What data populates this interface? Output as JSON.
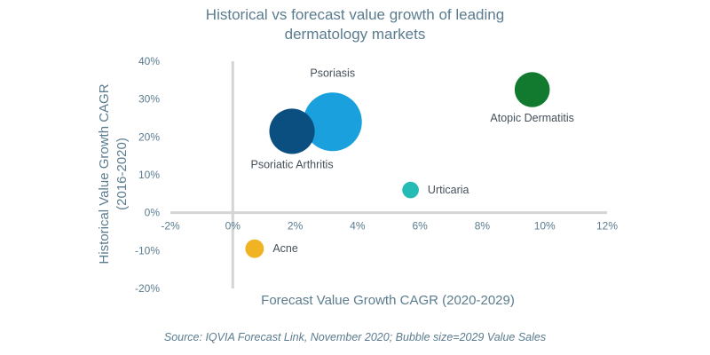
{
  "chart_data": {
    "type": "scatter",
    "title_lines": [
      "Historical vs forecast value growth of leading",
      "dermatology markets"
    ],
    "xlabel": "Forecast Value Growth CAGR (2020-2029)",
    "ylabel_lines": [
      "Historical Value Growth CAGR",
      "(2016-2020)"
    ],
    "xlim": [
      -2,
      12
    ],
    "ylim": [
      -20,
      40
    ],
    "x_ticks": [
      -2,
      0,
      2,
      4,
      6,
      8,
      10,
      12
    ],
    "y_ticks": [
      40,
      30,
      20,
      10,
      0,
      -10,
      -20
    ],
    "x_tick_labels": [
      "-2%",
      "0%",
      "2%",
      "4%",
      "6%",
      "8%",
      "10%",
      "12%"
    ],
    "y_tick_labels": [
      "40%",
      "30%",
      "20%",
      "10%",
      "0%",
      "-10%",
      "-20%"
    ],
    "grid": false,
    "bubbles": [
      {
        "name": "Psoriasis",
        "x": 3.2,
        "y": 24,
        "size": 1.0,
        "color": "#1aa0dc",
        "label_pos": "above"
      },
      {
        "name": "Psoriatic Arthritis",
        "x": 1.9,
        "y": 21.5,
        "size": 0.6,
        "color": "#0b4f80",
        "label_pos": "below"
      },
      {
        "name": "Atopic Dermatitis",
        "x": 9.6,
        "y": 32.5,
        "size": 0.36,
        "color": "#127a2e",
        "label_pos": "below"
      },
      {
        "name": "Urticaria",
        "x": 5.7,
        "y": 6,
        "size": 0.08,
        "color": "#26bcb6",
        "label_pos": "right"
      },
      {
        "name": "Acne",
        "x": 0.7,
        "y": -9.5,
        "size": 0.1,
        "color": "#f0b323",
        "label_pos": "right"
      }
    ]
  },
  "source_note": "Source: IQVIA Forecast Link, November 2020; Bubble size=2029 Value Sales"
}
